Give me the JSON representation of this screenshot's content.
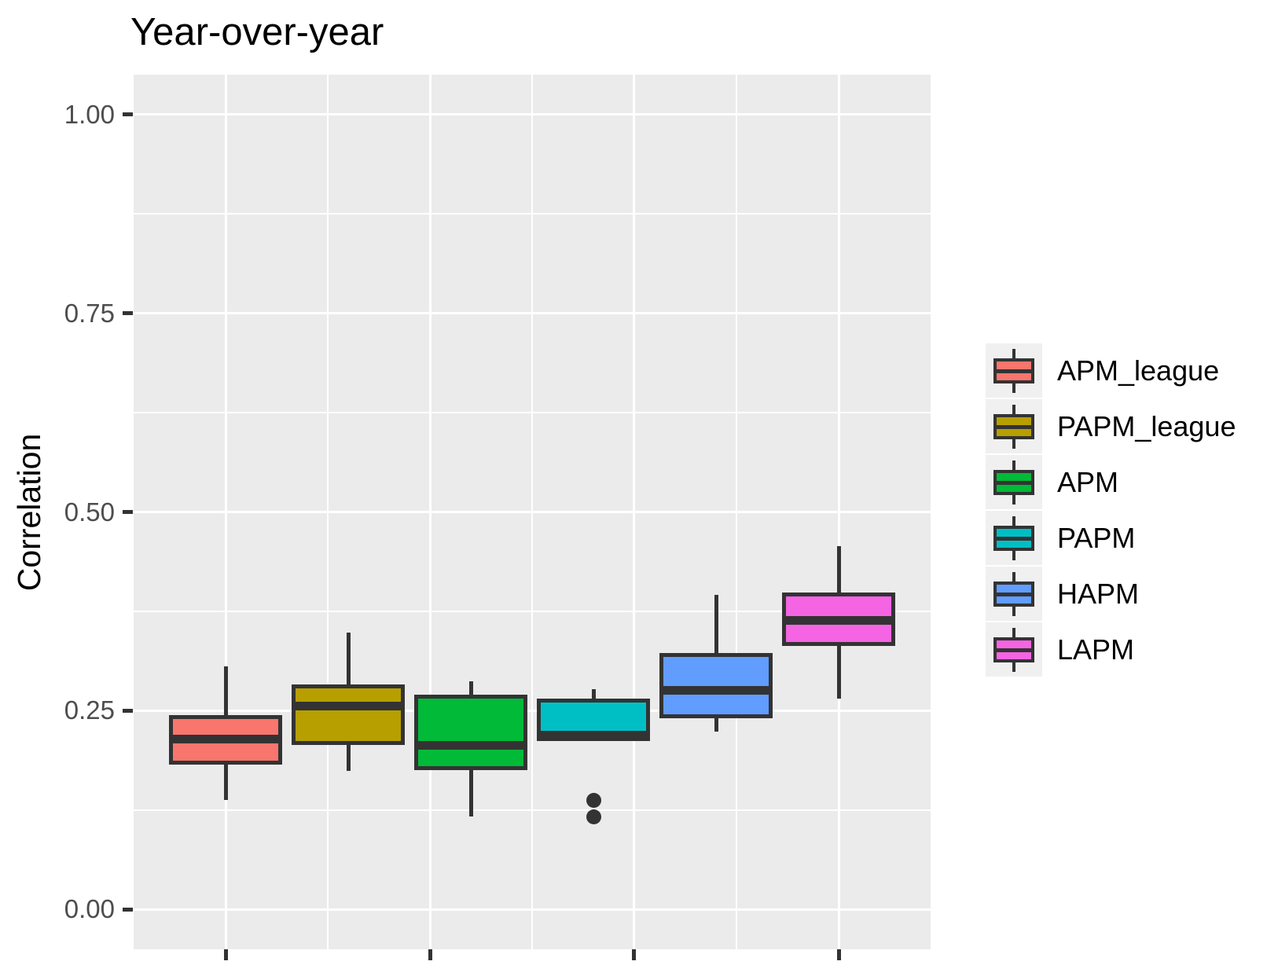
{
  "chart_data": {
    "type": "boxplot",
    "title": "Year-over-year",
    "ylabel": "Correlation",
    "xlabel": "",
    "grid": "major-and-minor",
    "legend_position": "right",
    "panel_bg": "#EBEBEB",
    "grid_color": "#FFFFFF",
    "outline_color": "#333333",
    "tick_label_color": "#4D4D4D",
    "ylim": [
      -0.05,
      1.05
    ],
    "y_ticks": [
      {
        "label": "0.00",
        "value": 0.0
      },
      {
        "label": "0.25",
        "value": 0.25
      },
      {
        "label": "0.50",
        "value": 0.5
      },
      {
        "label": "0.75",
        "value": 0.75
      },
      {
        "label": "1.00",
        "value": 1.0
      }
    ],
    "y_minor": [
      0.125,
      0.375,
      0.625,
      0.875
    ],
    "xlim": [
      0.25,
      6.75
    ],
    "x_major": [
      1,
      2.6667,
      4.3333,
      6
    ],
    "x_minor": [
      1.8333,
      3.5,
      5.1667
    ],
    "x_tick_labels": [
      "",
      "",
      "",
      ""
    ],
    "box_width": 0.92,
    "series": [
      {
        "name": "APM_league",
        "color": "#F8766D",
        "x": 1,
        "whisker_low": 0.138,
        "q1": 0.182,
        "median": 0.2145,
        "q3": 0.245,
        "whisker_high": 0.306,
        "outliers": []
      },
      {
        "name": "PAPM_league",
        "color": "#B79F00",
        "x": 2,
        "whisker_low": 0.174,
        "q1": 0.207,
        "median": 0.256,
        "q3": 0.283,
        "whisker_high": 0.348,
        "outliers": []
      },
      {
        "name": "APM",
        "color": "#00BA38",
        "x": 3,
        "whisker_low": 0.117,
        "q1": 0.175,
        "median": 0.206,
        "q3": 0.27,
        "whisker_high": 0.287,
        "outliers": []
      },
      {
        "name": "PAPM",
        "color": "#00BFC4",
        "x": 4,
        "whisker_low": 0.212,
        "q1": 0.212,
        "median": 0.2195,
        "q3": 0.265,
        "whisker_high": 0.277,
        "outliers": [
          0.137,
          0.117
        ]
      },
      {
        "name": "HAPM",
        "color": "#619CFF",
        "x": 5,
        "whisker_low": 0.224,
        "q1": 0.2405,
        "median": 0.2755,
        "q3": 0.323,
        "whisker_high": 0.396,
        "outliers": []
      },
      {
        "name": "LAPM",
        "color": "#F564E3",
        "x": 6,
        "whisker_low": 0.265,
        "q1": 0.331,
        "median": 0.364,
        "q3": 0.399,
        "whisker_high": 0.457,
        "outliers": []
      }
    ]
  }
}
